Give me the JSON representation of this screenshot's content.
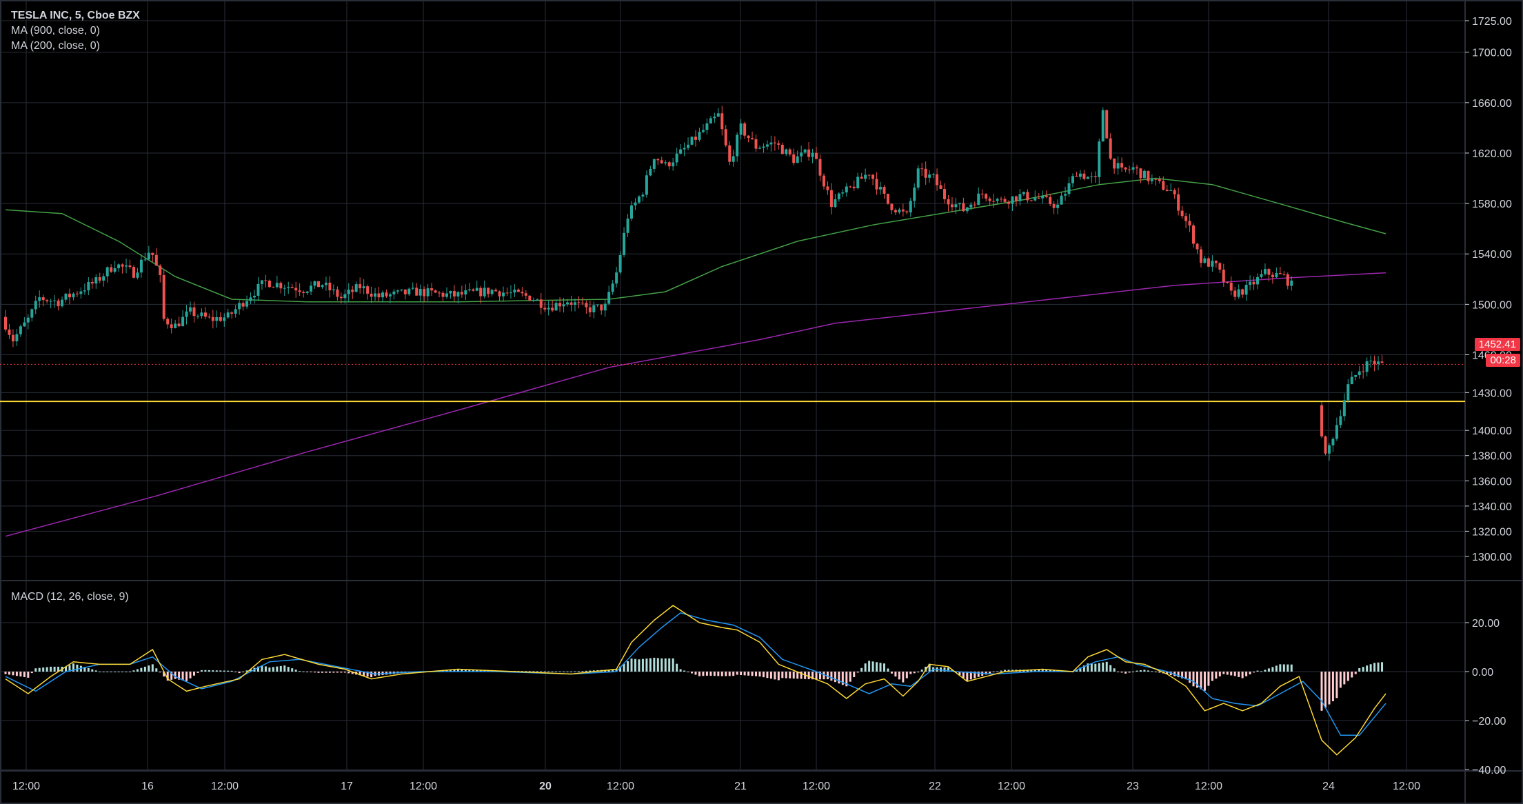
{
  "chart_data": {
    "type": "candlestick",
    "title": "TESLA INC, 5, Cboe BZX",
    "symbol": "TESLA INC",
    "interval": "5",
    "exchange": "Cboe BZX",
    "indicators": [
      {
        "name": "MA (900, close, 0)",
        "color": "#9c27b0"
      },
      {
        "name": "MA (200, close, 0)",
        "color": "#43a047"
      }
    ],
    "price_axis": {
      "ticks": [
        1725,
        1700,
        1660,
        1620,
        1580,
        1540,
        1500,
        1460,
        1430,
        1400,
        1380,
        1360,
        1340,
        1320,
        1300
      ],
      "tick_labels": [
        "1725.00",
        "1700.00",
        "1660.00",
        "1620.00",
        "1580.00",
        "1540.00",
        "1500.00",
        "1460.00",
        "1430.00",
        "1400.00",
        "1380.00",
        "1360.00",
        "1340.00",
        "1320.00",
        "1300.00"
      ],
      "ylim": [
        1280,
        1740
      ]
    },
    "time_axis": {
      "labels": [
        "12:00",
        "16",
        "12:00",
        "17",
        "12:00",
        "20",
        "12:00",
        "21",
        "12:00",
        "22",
        "12:00",
        "23",
        "12:00",
        "24",
        "12:00"
      ],
      "bold": [
        false,
        false,
        false,
        false,
        false,
        true,
        false,
        false,
        false,
        false,
        false,
        false,
        false,
        false,
        false
      ]
    },
    "price_series": [
      {
        "t": 0.0,
        "p": 1490
      },
      {
        "t": 0.3,
        "p": 1472
      },
      {
        "t": 0.7,
        "p": 1488
      },
      {
        "t": 1.0,
        "p": 1505
      },
      {
        "t": 1.5,
        "p": 1502
      },
      {
        "t": 2.0,
        "p": 1510
      },
      {
        "t": 2.5,
        "p": 1518
      },
      {
        "t": 3.0,
        "p": 1532
      },
      {
        "t": 3.5,
        "p": 1525
      },
      {
        "t": 3.95,
        "p": 1544
      },
      {
        "t": 4.2,
        "p": 1520
      },
      {
        "t": 4.3,
        "p": 1488
      },
      {
        "t": 4.6,
        "p": 1483
      },
      {
        "t": 5.0,
        "p": 1494
      },
      {
        "t": 5.5,
        "p": 1488
      },
      {
        "t": 6.0,
        "p": 1490
      },
      {
        "t": 6.5,
        "p": 1505
      },
      {
        "t": 7.0,
        "p": 1518
      },
      {
        "t": 7.5,
        "p": 1515
      },
      {
        "t": 8.0,
        "p": 1512
      },
      {
        "t": 8.5,
        "p": 1516
      },
      {
        "t": 9.0,
        "p": 1505
      },
      {
        "t": 9.5,
        "p": 1514
      },
      {
        "t": 10.0,
        "p": 1506
      },
      {
        "t": 11.0,
        "p": 1510
      },
      {
        "t": 12.0,
        "p": 1507
      },
      {
        "t": 13.0,
        "p": 1511
      },
      {
        "t": 14.0,
        "p": 1506
      },
      {
        "t": 14.5,
        "p": 1498
      },
      {
        "t": 15.0,
        "p": 1503
      },
      {
        "t": 15.5,
        "p": 1496
      },
      {
        "t": 16.0,
        "p": 1498
      },
      {
        "t": 16.3,
        "p": 1525
      },
      {
        "t": 16.6,
        "p": 1570
      },
      {
        "t": 17.0,
        "p": 1590
      },
      {
        "t": 17.3,
        "p": 1618
      },
      {
        "t": 17.6,
        "p": 1610
      },
      {
        "t": 18.0,
        "p": 1620
      },
      {
        "t": 18.5,
        "p": 1635
      },
      {
        "t": 19.0,
        "p": 1650
      },
      {
        "t": 19.3,
        "p": 1612
      },
      {
        "t": 19.6,
        "p": 1640
      },
      {
        "t": 20.0,
        "p": 1625
      },
      {
        "t": 20.5,
        "p": 1628
      },
      {
        "t": 21.0,
        "p": 1615
      },
      {
        "t": 21.5,
        "p": 1622
      },
      {
        "t": 22.0,
        "p": 1580
      },
      {
        "t": 22.5,
        "p": 1592
      },
      {
        "t": 23.0,
        "p": 1605
      },
      {
        "t": 23.5,
        "p": 1580
      },
      {
        "t": 24.0,
        "p": 1570
      },
      {
        "t": 24.3,
        "p": 1605
      },
      {
        "t": 24.7,
        "p": 1600
      },
      {
        "t": 25.0,
        "p": 1585
      },
      {
        "t": 25.5,
        "p": 1575
      },
      {
        "t": 26.0,
        "p": 1588
      },
      {
        "t": 26.5,
        "p": 1582
      },
      {
        "t": 27.0,
        "p": 1586
      },
      {
        "t": 27.5,
        "p": 1584
      },
      {
        "t": 28.0,
        "p": 1578
      },
      {
        "t": 28.5,
        "p": 1605
      },
      {
        "t": 29.0,
        "p": 1598
      },
      {
        "t": 29.2,
        "p": 1655
      },
      {
        "t": 29.4,
        "p": 1615
      },
      {
        "t": 29.7,
        "p": 1605
      },
      {
        "t": 30.0,
        "p": 1608
      },
      {
        "t": 30.5,
        "p": 1598
      },
      {
        "t": 31.0,
        "p": 1590
      },
      {
        "t": 31.5,
        "p": 1560
      },
      {
        "t": 31.8,
        "p": 1535
      },
      {
        "t": 32.2,
        "p": 1530
      },
      {
        "t": 32.6,
        "p": 1508
      },
      {
        "t": 33.0,
        "p": 1512
      },
      {
        "t": 33.5,
        "p": 1525
      },
      {
        "t": 34.0,
        "p": 1522
      },
      {
        "t": 34.2,
        "p": 1515
      }
    ],
    "price_series_2": [
      {
        "t": 34.9,
        "p": 1420
      },
      {
        "t": 35.1,
        "p": 1378
      },
      {
        "t": 35.4,
        "p": 1405
      },
      {
        "t": 35.7,
        "p": 1435
      },
      {
        "t": 36.0,
        "p": 1448
      },
      {
        "t": 36.3,
        "p": 1455
      },
      {
        "t": 36.6,
        "p": 1452
      }
    ],
    "ma200_series": [
      {
        "t": 0,
        "p": 1575
      },
      {
        "t": 1.5,
        "p": 1572
      },
      {
        "t": 3.0,
        "p": 1550
      },
      {
        "t": 4.5,
        "p": 1522
      },
      {
        "t": 6.0,
        "p": 1504
      },
      {
        "t": 8.0,
        "p": 1502
      },
      {
        "t": 12.0,
        "p": 1502
      },
      {
        "t": 16.0,
        "p": 1504
      },
      {
        "t": 17.5,
        "p": 1510
      },
      {
        "t": 19.0,
        "p": 1530
      },
      {
        "t": 21.0,
        "p": 1550
      },
      {
        "t": 23.0,
        "p": 1563
      },
      {
        "t": 25.0,
        "p": 1573
      },
      {
        "t": 27.0,
        "p": 1583
      },
      {
        "t": 29.0,
        "p": 1595
      },
      {
        "t": 30.5,
        "p": 1600
      },
      {
        "t": 32.0,
        "p": 1595
      },
      {
        "t": 34.0,
        "p": 1578
      },
      {
        "t": 35.5,
        "p": 1565
      },
      {
        "t": 36.6,
        "p": 1556
      }
    ],
    "ma900_series": [
      {
        "t": 0,
        "p": 1316
      },
      {
        "t": 4.0,
        "p": 1348
      },
      {
        "t": 8.0,
        "p": 1383
      },
      {
        "t": 12.0,
        "p": 1416
      },
      {
        "t": 16.0,
        "p": 1450
      },
      {
        "t": 20.0,
        "p": 1472
      },
      {
        "t": 22.0,
        "p": 1485
      },
      {
        "t": 25.0,
        "p": 1495
      },
      {
        "t": 28.0,
        "p": 1505
      },
      {
        "t": 31.0,
        "p": 1515
      },
      {
        "t": 34.0,
        "p": 1521
      },
      {
        "t": 36.6,
        "p": 1525
      }
    ],
    "horizontal_line": {
      "price": 1423,
      "color": "#fdd835"
    },
    "last_price": {
      "value": 1452.41,
      "label": "1452.41",
      "countdown": "00:28",
      "color": "#f23645"
    },
    "macd": {
      "name": "MACD (12, 26, close, 9)",
      "ticks": [
        20,
        0,
        -20,
        -40
      ],
      "tick_labels": [
        "20.00",
        "0.00",
        "−20.00",
        "−40.00"
      ],
      "ylim": [
        -42,
        28
      ],
      "macd_line": [
        {
          "t": 0,
          "v": -3
        },
        {
          "t": 0.6,
          "v": -9
        },
        {
          "t": 1.2,
          "v": -2
        },
        {
          "t": 1.8,
          "v": 4
        },
        {
          "t": 2.5,
          "v": 3
        },
        {
          "t": 3.3,
          "v": 3
        },
        {
          "t": 3.9,
          "v": 9
        },
        {
          "t": 4.3,
          "v": -3
        },
        {
          "t": 4.8,
          "v": -8
        },
        {
          "t": 5.3,
          "v": -6
        },
        {
          "t": 6.2,
          "v": -3
        },
        {
          "t": 6.8,
          "v": 5
        },
        {
          "t": 7.4,
          "v": 7
        },
        {
          "t": 8.3,
          "v": 3
        },
        {
          "t": 9.0,
          "v": 1
        },
        {
          "t": 9.7,
          "v": -3
        },
        {
          "t": 10.5,
          "v": -1
        },
        {
          "t": 12.0,
          "v": 1
        },
        {
          "t": 13.5,
          "v": 0
        },
        {
          "t": 15.0,
          "v": -1
        },
        {
          "t": 16.2,
          "v": 1
        },
        {
          "t": 16.6,
          "v": 12
        },
        {
          "t": 17.2,
          "v": 21
        },
        {
          "t": 17.7,
          "v": 27
        },
        {
          "t": 18.4,
          "v": 20
        },
        {
          "t": 19.0,
          "v": 18
        },
        {
          "t": 19.4,
          "v": 17
        },
        {
          "t": 20.0,
          "v": 12
        },
        {
          "t": 20.5,
          "v": 3
        },
        {
          "t": 21.3,
          "v": -2
        },
        {
          "t": 21.8,
          "v": -5
        },
        {
          "t": 22.3,
          "v": -11
        },
        {
          "t": 22.8,
          "v": -5
        },
        {
          "t": 23.3,
          "v": -3
        },
        {
          "t": 23.8,
          "v": -10
        },
        {
          "t": 24.2,
          "v": -4
        },
        {
          "t": 24.5,
          "v": 3
        },
        {
          "t": 25.0,
          "v": 2
        },
        {
          "t": 25.5,
          "v": -4
        },
        {
          "t": 26.5,
          "v": 0
        },
        {
          "t": 27.5,
          "v": 1
        },
        {
          "t": 28.3,
          "v": 0
        },
        {
          "t": 28.7,
          "v": 6
        },
        {
          "t": 29.2,
          "v": 9
        },
        {
          "t": 29.7,
          "v": 4
        },
        {
          "t": 30.2,
          "v": 3
        },
        {
          "t": 30.8,
          "v": -1
        },
        {
          "t": 31.3,
          "v": -6
        },
        {
          "t": 31.8,
          "v": -16
        },
        {
          "t": 32.3,
          "v": -13
        },
        {
          "t": 32.8,
          "v": -16
        },
        {
          "t": 33.3,
          "v": -13
        },
        {
          "t": 33.8,
          "v": -6
        },
        {
          "t": 34.3,
          "v": -2
        },
        {
          "t": 34.9,
          "v": -28
        },
        {
          "t": 35.3,
          "v": -34
        },
        {
          "t": 35.8,
          "v": -27
        },
        {
          "t": 36.3,
          "v": -15
        },
        {
          "t": 36.6,
          "v": -9
        }
      ],
      "signal_line": [
        {
          "t": 0,
          "v": -2
        },
        {
          "t": 0.8,
          "v": -8
        },
        {
          "t": 1.6,
          "v": 0
        },
        {
          "t": 2.5,
          "v": 3
        },
        {
          "t": 3.3,
          "v": 3
        },
        {
          "t": 3.9,
          "v": 6
        },
        {
          "t": 4.5,
          "v": -2
        },
        {
          "t": 5.2,
          "v": -7
        },
        {
          "t": 6.0,
          "v": -4
        },
        {
          "t": 7.0,
          "v": 4
        },
        {
          "t": 7.8,
          "v": 5
        },
        {
          "t": 8.8,
          "v": 2
        },
        {
          "t": 9.8,
          "v": -1
        },
        {
          "t": 11.0,
          "v": 0
        },
        {
          "t": 13.0,
          "v": 0
        },
        {
          "t": 15.0,
          "v": -1
        },
        {
          "t": 16.2,
          "v": 0
        },
        {
          "t": 16.8,
          "v": 10
        },
        {
          "t": 17.4,
          "v": 18
        },
        {
          "t": 17.9,
          "v": 24
        },
        {
          "t": 18.6,
          "v": 21
        },
        {
          "t": 19.3,
          "v": 19
        },
        {
          "t": 20.0,
          "v": 14
        },
        {
          "t": 20.6,
          "v": 5
        },
        {
          "t": 21.5,
          "v": 0
        },
        {
          "t": 22.3,
          "v": -5
        },
        {
          "t": 22.9,
          "v": -9
        },
        {
          "t": 23.5,
          "v": -5
        },
        {
          "t": 24.0,
          "v": -6
        },
        {
          "t": 24.6,
          "v": 1
        },
        {
          "t": 25.2,
          "v": 0
        },
        {
          "t": 26.2,
          "v": -1
        },
        {
          "t": 27.3,
          "v": 0
        },
        {
          "t": 28.3,
          "v": 0
        },
        {
          "t": 28.9,
          "v": 4
        },
        {
          "t": 29.5,
          "v": 6
        },
        {
          "t": 30.0,
          "v": 3
        },
        {
          "t": 30.8,
          "v": 0
        },
        {
          "t": 31.5,
          "v": -4
        },
        {
          "t": 32.0,
          "v": -11
        },
        {
          "t": 32.6,
          "v": -13
        },
        {
          "t": 33.2,
          "v": -14
        },
        {
          "t": 33.8,
          "v": -9
        },
        {
          "t": 34.4,
          "v": -4
        },
        {
          "t": 34.9,
          "v": -12
        },
        {
          "t": 35.4,
          "v": -26
        },
        {
          "t": 35.9,
          "v": -26
        },
        {
          "t": 36.6,
          "v": -13
        }
      ]
    },
    "colors": {
      "background": "#000000",
      "grid": "#2a2e39",
      "candle_up": "#26a69a",
      "candle_down": "#ef5350",
      "hist_up": "#b2dfdb",
      "hist_down": "#ffcdd2",
      "macd_line": "#fdd835",
      "signal_line": "#2196f3",
      "text": "#d1d4dc"
    }
  }
}
